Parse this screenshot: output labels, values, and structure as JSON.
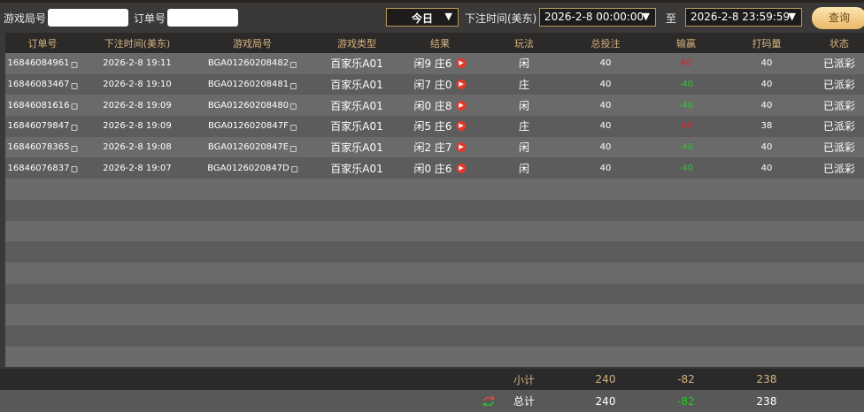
{
  "filters": {
    "game_round_label": "游戏局号",
    "game_round_value": "",
    "order_label": "订单号",
    "order_value": "",
    "period": "今日",
    "time_label": "下注时间(美东)",
    "start": "2026-2-8 00:00:00",
    "to_label": "至",
    "end": "2026-2-8 23:59:59",
    "query": "查询"
  },
  "columns": [
    "订单号",
    "下注时间(美东)",
    "游戏局号",
    "游戏类型",
    "结果",
    "玩法",
    "总投注",
    "输赢",
    "打码量",
    "状态"
  ],
  "rows": [
    {
      "order": "16846084961",
      "time": "2026-2-8 19:11",
      "round": "BGA01260208482",
      "type": "百家乐A01",
      "result": "闲9 庄6",
      "bet": "闲",
      "total": "40",
      "winloss": "40",
      "winloss_color": "#e02020",
      "turnover": "40",
      "status": "已派彩"
    },
    {
      "order": "16846083467",
      "time": "2026-2-8 19:10",
      "round": "BGA01260208481",
      "type": "百家乐A01",
      "result": "闲7 庄0",
      "bet": "庄",
      "total": "40",
      "winloss": "-40",
      "winloss_color": "#22cc22",
      "turnover": "40",
      "status": "已派彩"
    },
    {
      "order": "16846081616",
      "time": "2026-2-8 19:09",
      "round": "BGA01260208480",
      "type": "百家乐A01",
      "result": "闲0 庄8",
      "bet": "闲",
      "total": "40",
      "winloss": "-40",
      "winloss_color": "#22cc22",
      "turnover": "40",
      "status": "已派彩"
    },
    {
      "order": "16846079847",
      "time": "2026-2-8 19:09",
      "round": "BGA0126020847F",
      "type": "百家乐A01",
      "result": "闲5 庄6",
      "bet": "庄",
      "total": "40",
      "winloss": "38",
      "winloss_color": "#e02020",
      "turnover": "38",
      "status": "已派彩"
    },
    {
      "order": "16846078365",
      "time": "2026-2-8 19:08",
      "round": "BGA0126020847E",
      "type": "百家乐A01",
      "result": "闲2 庄7",
      "bet": "闲",
      "total": "40",
      "winloss": "-40",
      "winloss_color": "#22cc22",
      "turnover": "40",
      "status": "已派彩"
    },
    {
      "order": "16846076837",
      "time": "2026-2-8 19:07",
      "round": "BGA0126020847D",
      "type": "百家乐A01",
      "result": "闲0 庄6",
      "bet": "闲",
      "total": "40",
      "winloss": "-40",
      "winloss_color": "#22cc22",
      "turnover": "40",
      "status": "已派彩"
    }
  ],
  "subtotal": {
    "label": "小计",
    "total": "240",
    "winloss": "-82",
    "turnover": "238"
  },
  "grand_total": {
    "label": "总计",
    "total": "240",
    "winloss": "-82",
    "turnover": "238"
  }
}
